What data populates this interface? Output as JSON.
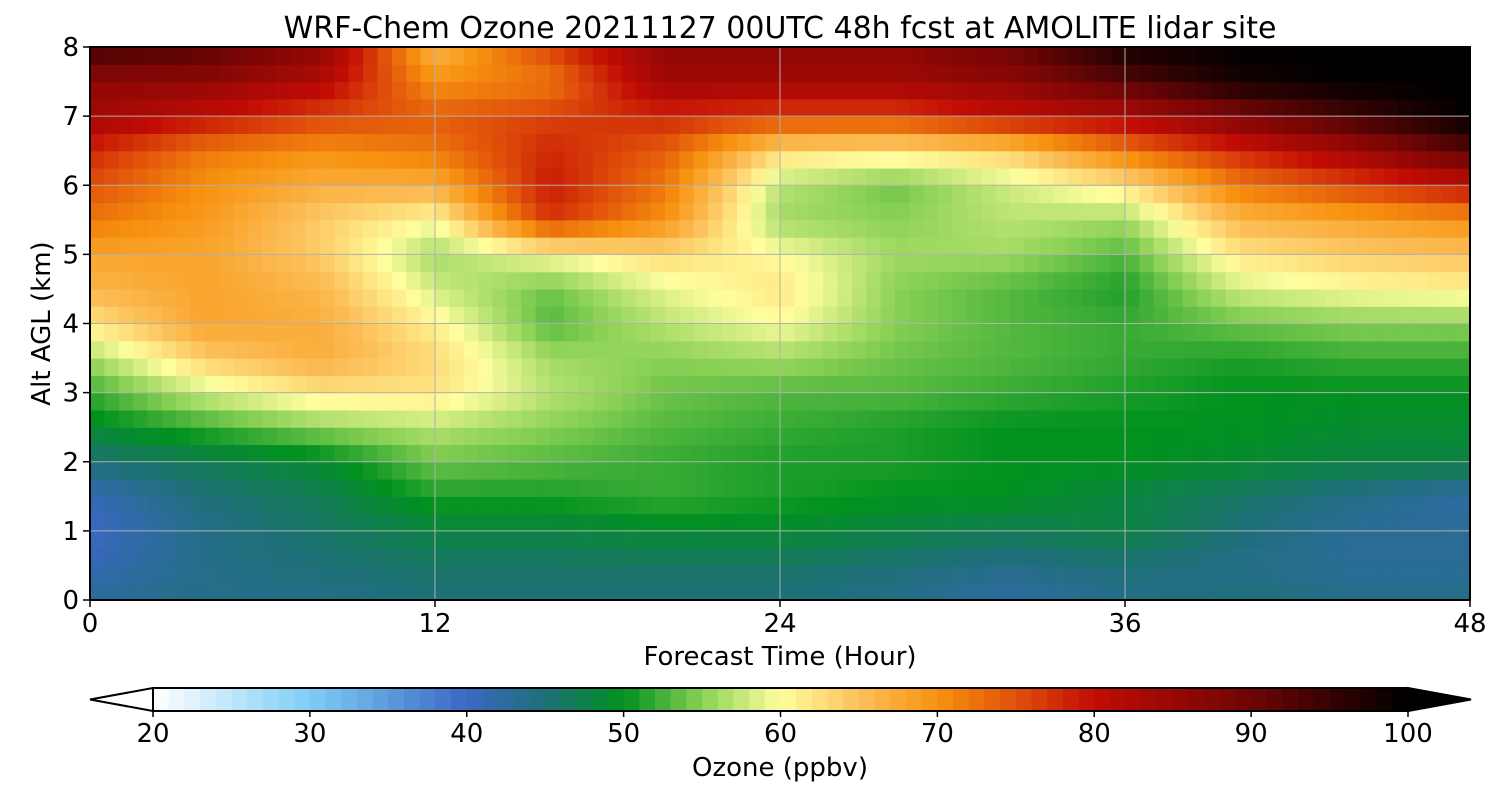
{
  "chart_data": {
    "type": "heatmap",
    "title": "WRF-Chem Ozone  20211127 00UTC 48h fcst at AMOLITE lidar site",
    "xlabel": "Forecast Time (Hour)",
    "ylabel": "Alt AGL (km)",
    "xlim": [
      0,
      48
    ],
    "ylim": [
      0,
      8
    ],
    "x_ticks": [
      "0",
      "12",
      "24",
      "36",
      "48"
    ],
    "y_ticks": [
      "0",
      "1",
      "2",
      "3",
      "4",
      "5",
      "6",
      "7",
      "8"
    ],
    "grid": true,
    "x": [
      0,
      4,
      8,
      12,
      16,
      20,
      24,
      28,
      32,
      36,
      40,
      44,
      48
    ],
    "y": [
      0,
      0.5,
      1,
      1.5,
      2,
      2.5,
      3,
      3.5,
      4,
      4.5,
      5,
      5.5,
      6,
      6.5,
      7,
      7.5,
      8
    ],
    "z": [
      [
        43,
        44,
        44,
        45,
        45,
        45,
        45,
        44,
        42,
        44,
        45,
        44,
        44
      ],
      [
        41,
        44,
        45,
        46,
        46,
        46,
        46,
        45,
        44,
        45,
        44,
        43,
        43
      ],
      [
        40,
        44,
        46,
        48,
        48,
        49,
        49,
        48,
        47,
        48,
        45,
        43,
        43
      ],
      [
        41,
        45,
        47,
        51,
        51,
        52,
        51,
        50,
        50,
        48,
        46,
        44,
        42
      ],
      [
        45,
        47,
        49,
        54,
        53,
        52,
        51,
        51,
        50,
        50,
        49,
        48,
        48
      ],
      [
        49,
        52,
        55,
        57,
        55,
        53,
        52,
        51,
        50,
        50,
        50,
        49,
        49
      ],
      [
        52,
        58,
        62,
        62,
        57,
        54,
        53,
        53,
        52,
        51,
        50,
        50,
        50
      ],
      [
        56,
        64,
        67,
        63,
        56,
        55,
        56,
        54,
        53,
        52,
        51,
        52,
        52
      ],
      [
        62,
        68,
        67,
        61,
        53,
        57,
        60,
        55,
        53,
        52,
        54,
        55,
        55
      ],
      [
        66,
        68,
        66,
        58,
        54,
        59,
        62,
        55,
        53,
        51,
        58,
        60,
        61
      ],
      [
        68,
        68,
        64,
        56,
        60,
        63,
        60,
        56,
        56,
        53,
        62,
        64,
        65
      ],
      [
        72,
        69,
        64,
        60,
        77,
        70,
        56,
        55,
        57,
        56,
        66,
        68,
        70
      ],
      [
        75,
        70,
        67,
        67,
        79,
        72,
        57,
        54,
        58,
        62,
        72,
        76,
        80
      ],
      [
        78,
        72,
        70,
        72,
        78,
        74,
        63,
        62,
        64,
        72,
        78,
        84,
        92
      ],
      [
        84,
        80,
        76,
        74,
        76,
        78,
        76,
        76,
        80,
        82,
        88,
        94,
        100
      ],
      [
        86,
        86,
        82,
        70,
        72,
        84,
        84,
        84,
        86,
        92,
        98,
        100,
        100
      ],
      [
        94,
        92,
        86,
        66,
        76,
        86,
        86,
        86,
        90,
        98,
        100,
        100,
        100
      ]
    ],
    "colorbar": {
      "label": "Ozone  (ppbv)",
      "min": 20,
      "max": 100,
      "ticks": [
        "20",
        "30",
        "40",
        "50",
        "60",
        "70",
        "80",
        "90",
        "100"
      ],
      "extend": "both"
    },
    "colormap": [
      [
        20,
        "#ffffff"
      ],
      [
        30,
        "#7ecdf5"
      ],
      [
        40,
        "#3b68c4"
      ],
      [
        45,
        "#1e6f78"
      ],
      [
        50,
        "#00911e"
      ],
      [
        55,
        "#8ad155"
      ],
      [
        60,
        "#fffe9e"
      ],
      [
        65,
        "#fcc05a"
      ],
      [
        70,
        "#f7920f"
      ],
      [
        75,
        "#e0500a"
      ],
      [
        80,
        "#c20c05"
      ],
      [
        90,
        "#6d0505"
      ],
      [
        100,
        "#000000"
      ]
    ]
  }
}
